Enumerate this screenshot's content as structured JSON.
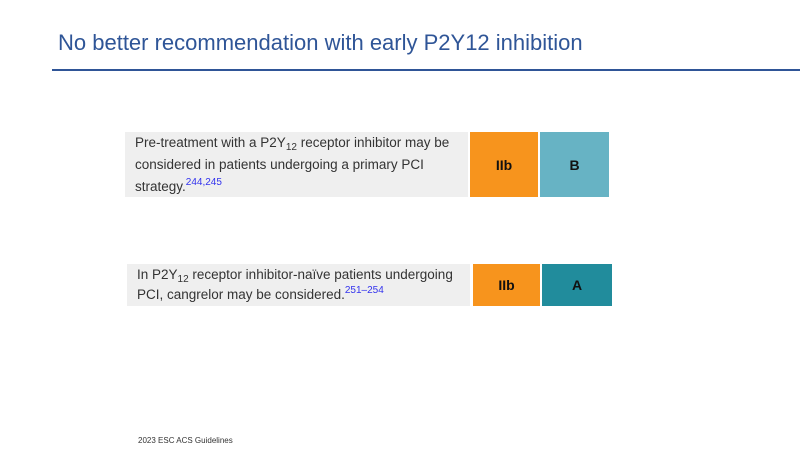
{
  "title": "No better recommendation with early P2Y12 inhibition",
  "colors": {
    "class_IIb": "#f7941d",
    "level_B": "#67b3c4",
    "level_A": "#218c9c",
    "title": "#2f5597"
  },
  "recommendations": [
    {
      "pre": "Pre-treatment with a P2Y",
      "sub": "12",
      "post": " receptor inhibitor may be considered in patients undergoing a primary PCI strategy.",
      "refs": "244,245",
      "class": "IIb",
      "level": "B"
    },
    {
      "pre": "In P2Y",
      "sub": "12",
      "post": " receptor inhibitor-naïve patients undergoing PCI, cangrelor may be considered.",
      "refs": "251–254",
      "class": "IIb",
      "level": "A"
    }
  ],
  "footer": "2023 ESC ACS Guidelines"
}
